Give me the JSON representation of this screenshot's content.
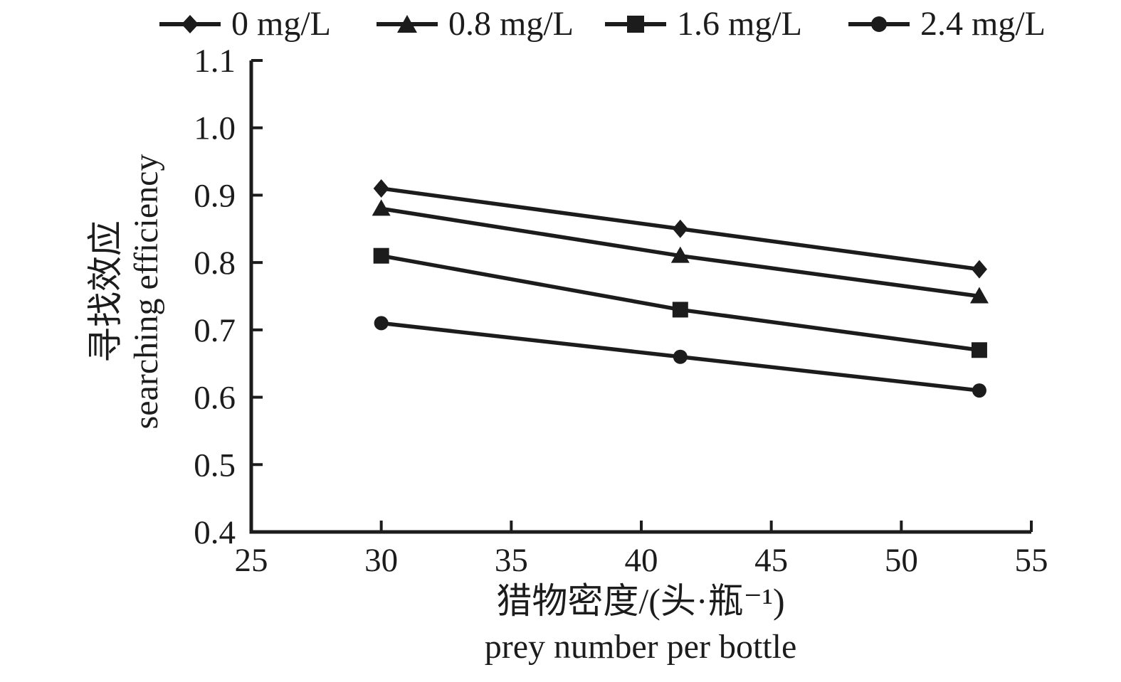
{
  "figure": {
    "legend": [
      {
        "label": "0 mg/L",
        "marker": "diamond"
      },
      {
        "label": "0.8 mg/L",
        "marker": "triangle"
      },
      {
        "label": "1.6 mg/L",
        "marker": "square"
      },
      {
        "label": "2.4 mg/L",
        "marker": "circle"
      }
    ],
    "y_axis_label_zh": "寻找效应",
    "y_axis_label_en": "searching efficiency",
    "x_axis_label_zh": "猎物密度/(头·瓶⁻¹)",
    "x_axis_label_en": "prey number per bottle"
  },
  "chart_data": {
    "type": "line",
    "x": [
      30,
      41.5,
      53
    ],
    "series": [
      {
        "name": "0 mg/L",
        "marker": "diamond",
        "values": [
          0.91,
          0.85,
          0.79
        ]
      },
      {
        "name": "0.8 mg/L",
        "marker": "triangle",
        "values": [
          0.88,
          0.81,
          0.75
        ]
      },
      {
        "name": "1.6 mg/L",
        "marker": "square",
        "values": [
          0.81,
          0.73,
          0.67
        ]
      },
      {
        "name": "2.4 mg/L",
        "marker": "circle",
        "values": [
          0.71,
          0.66,
          0.61
        ]
      }
    ],
    "title": "",
    "xlabel_zh": "猎物密度/(头·瓶⁻¹)",
    "xlabel_en": "prey number per bottle",
    "ylabel_zh": "寻找效应",
    "ylabel_en": "searching efficiency",
    "xlim": [
      25,
      55
    ],
    "ylim": [
      0.4,
      1.1
    ],
    "x_ticks": [
      25,
      30,
      35,
      40,
      45,
      50,
      55
    ],
    "y_ticks": [
      0.4,
      0.5,
      0.6,
      0.7,
      0.8,
      0.9,
      1.0,
      1.1
    ],
    "grid": false,
    "legend_position": "top",
    "line_color": "#1c1c1c"
  }
}
